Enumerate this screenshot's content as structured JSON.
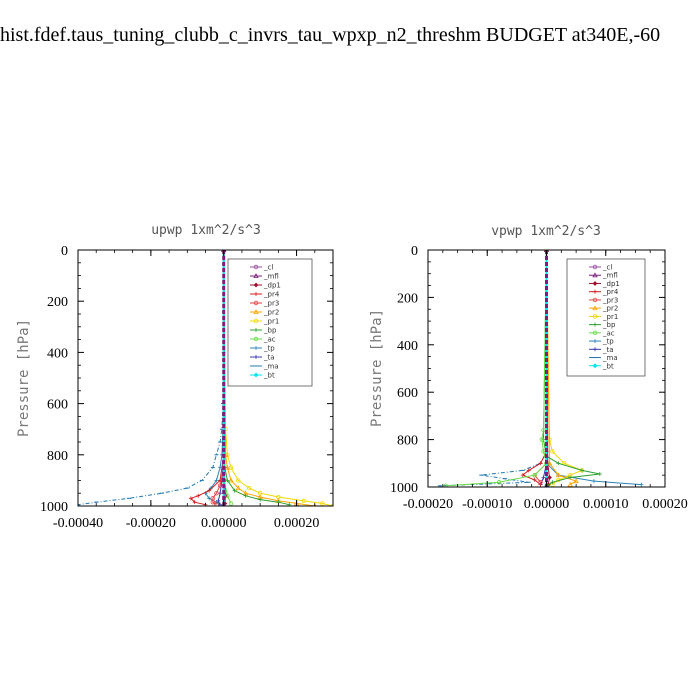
{
  "figure_title": "hist.fdef.taus_tuning_clubb_c_invrs_tau_wpxp_n2_threshm  BUDGET at340E,-60",
  "colors": {
    "_cl": "#984ea3",
    "_mfl": "#7b1f7b",
    "_dp1": "#a50f2d",
    "_pr4": "#d7191c",
    "_pr3": "#e8413f",
    "_pr2": "#ffa500",
    "_pr1": "#f0d800",
    "_bp": "#2ca02c",
    "_ac": "#66dd44",
    "_tp": "#2b83ba",
    "_ta": "#3a3ab0",
    "_ma": "#1f78b4",
    "_bt": "#00e5ee"
  },
  "chart_data": [
    {
      "type": "line",
      "title": "upwp   1xm^2/s^3",
      "xlabel": "",
      "ylabel": "Pressure [hPa]",
      "xlim": [
        -0.0004,
        0.0003
      ],
      "ylim": [
        1000,
        0
      ],
      "xticks": [
        "-0.00040",
        "-0.00020",
        "0.00000",
        "0.00020"
      ],
      "xtick_values": [
        -0.0004,
        -0.0002,
        0.0,
        0.0002
      ],
      "yticks": [
        "0",
        "200",
        "400",
        "600",
        "800",
        "1000"
      ],
      "ytick_values": [
        0,
        200,
        400,
        600,
        800,
        1000
      ],
      "legend_position": "top-right",
      "legend": [
        "_cl",
        "_mfl",
        "_dp1",
        "_pr4",
        "_pr3",
        "_pr2",
        "_pr1",
        "_bp",
        "_ac",
        "_tp",
        "_ta",
        "_ma",
        "_bt"
      ],
      "series": [
        {
          "name": "_ma",
          "y": [
            0,
            400,
            600,
            700,
            750,
            800,
            850,
            900,
            930,
            950,
            970,
            985,
            995
          ],
          "values": [
            0,
            0,
            -2e-06,
            -5e-06,
            -1e-05,
            -2e-05,
            -3e-05,
            -6e-05,
            -0.0001,
            -0.00017,
            -0.00026,
            -0.00035,
            -0.0004
          ]
        },
        {
          "name": "_tp",
          "y": [
            0,
            600,
            700,
            800,
            850,
            900,
            930,
            950,
            970,
            985,
            995
          ],
          "values": [
            0,
            0,
            -2e-06,
            -5e-06,
            -1e-05,
            -2e-05,
            -3.5e-05,
            -5e-05,
            -4e-05,
            -2e-05,
            -1e-05
          ]
        },
        {
          "name": "_ta",
          "y": [
            0,
            800,
            900,
            950,
            980,
            995
          ],
          "values": [
            0,
            0,
            -5e-06,
            -1e-05,
            -1.5e-05,
            -1e-05
          ]
        },
        {
          "name": "_pr4",
          "y": [
            0,
            800,
            900,
            940,
            960,
            970,
            985,
            995
          ],
          "values": [
            0,
            0,
            -1e-05,
            -4e-05,
            -7e-05,
            -9e-05,
            -8e-05,
            -5e-05
          ]
        },
        {
          "name": "_pr3",
          "y": [
            0,
            850,
            920,
            950,
            970,
            985,
            995
          ],
          "values": [
            0,
            0,
            -1e-05,
            -2e-05,
            -3e-05,
            -3e-05,
            -2e-05
          ]
        },
        {
          "name": "_dp1",
          "y": [
            0,
            900,
            960,
            990
          ],
          "values": [
            0,
            2e-06,
            5e-06,
            3e-06
          ]
        },
        {
          "name": "_pr1",
          "y": [
            0,
            700,
            800,
            850,
            900,
            930,
            950,
            965,
            980,
            990,
            1000
          ],
          "values": [
            0,
            5e-06,
            1e-05,
            2e-05,
            4e-05,
            7e-05,
            0.0001,
            0.00015,
            0.00022,
            0.00027,
            0.0003
          ]
        },
        {
          "name": "_pr2",
          "y": [
            0,
            800,
            850,
            900,
            930,
            950,
            965,
            980,
            990,
            1000
          ],
          "values": [
            0,
            5e-06,
            1e-05,
            2e-05,
            4e-05,
            6e-05,
            0.0001,
            0.00015,
            0.0002,
            0.00025
          ]
        },
        {
          "name": "_bp",
          "y": [
            0,
            850,
            900,
            940,
            960,
            975,
            985,
            995
          ],
          "values": [
            0,
            3e-06,
            1e-05,
            3e-05,
            6e-05,
            0.0001,
            0.00015,
            0.00018
          ]
        },
        {
          "name": "_ac",
          "y": [
            0,
            900,
            960,
            990
          ],
          "values": [
            0,
            2e-06,
            1e-05,
            2e-05
          ]
        },
        {
          "name": "_cl",
          "y": [
            0,
            1000
          ],
          "values": [
            0,
            0
          ]
        },
        {
          "name": "_bt",
          "y": [
            0,
            1000
          ],
          "values": [
            0,
            0
          ]
        },
        {
          "name": "_mfl",
          "y": [
            0,
            1000
          ],
          "values": [
            0,
            0
          ]
        }
      ]
    },
    {
      "type": "line",
      "title": "vpwp   1xm^2/s^3",
      "xlabel": "",
      "ylabel": "Pressure [hPa]",
      "xlim": [
        -0.0002,
        0.0002
      ],
      "ylim": [
        1000,
        0
      ],
      "xticks": [
        "-0.00020",
        "-0.00010",
        "0.00000",
        "0.00010",
        "0.00020"
      ],
      "xtick_values": [
        -0.0002,
        -0.0001,
        0.0,
        0.0001,
        0.0002
      ],
      "yticks": [
        "0",
        "200",
        "400",
        "600",
        "800",
        "1000"
      ],
      "ytick_values": [
        0,
        200,
        400,
        600,
        800,
        1000
      ],
      "legend_position": "top-right",
      "legend": [
        "_cl",
        "_mfl",
        "_dp1",
        "_pr4",
        "_pr3",
        "_pr2",
        "_pr1",
        "_bp",
        "_ac",
        "_tp",
        "_ta",
        "_ma",
        "_bt"
      ],
      "series": [
        {
          "name": "_ma",
          "y": [
            0,
            850,
            900,
            930,
            950,
            965,
            980,
            995
          ],
          "values": [
            0,
            0,
            -1e-05,
            -4e-05,
            -0.00011,
            -7e-05,
            -3e-05,
            -0.00018
          ]
        },
        {
          "name": "_tp",
          "y": [
            0,
            900,
            950,
            975,
            990
          ],
          "values": [
            0,
            0,
            2e-05,
            8e-05,
            0.00016
          ]
        },
        {
          "name": "_ta",
          "y": [
            0,
            900,
            960,
            990
          ],
          "values": [
            0,
            0,
            -5e-06,
            -1e-05
          ]
        },
        {
          "name": "_pr4",
          "y": [
            0,
            850,
            900,
            930,
            950,
            970,
            990
          ],
          "values": [
            0,
            0,
            -1e-05,
            -3e-05,
            -4e-05,
            -2e-05,
            -1e-05
          ]
        },
        {
          "name": "_pr3",
          "y": [
            0,
            900,
            950,
            980
          ],
          "values": [
            0,
            0,
            -2e-05,
            -1e-05
          ]
        },
        {
          "name": "_dp1",
          "y": [
            0,
            900,
            960,
            990
          ],
          "values": [
            0,
            2e-06,
            5e-06,
            3e-06
          ]
        },
        {
          "name": "_pr1",
          "y": [
            0,
            800,
            850,
            900,
            930,
            950,
            970,
            990
          ],
          "values": [
            0,
            5e-06,
            1e-05,
            3e-05,
            6e-05,
            4e-05,
            2e-05,
            1e-05
          ]
        },
        {
          "name": "_pr2",
          "y": [
            0,
            900,
            950,
            975,
            990
          ],
          "values": [
            0,
            5e-06,
            2e-05,
            5e-05,
            4e-05
          ]
        },
        {
          "name": "_bp",
          "y": [
            0,
            800,
            870,
            900,
            930,
            945,
            960,
            980,
            995
          ],
          "values": [
            0,
            -5e-06,
            0,
            2e-05,
            6e-05,
            9e-05,
            4e-05,
            1e-05,
            0
          ]
        },
        {
          "name": "_ac",
          "y": [
            0,
            760,
            800,
            850,
            900,
            950,
            980,
            995
          ],
          "values": [
            0,
            -5e-06,
            -8e-06,
            -5e-06,
            0,
            -2e-05,
            -8e-05,
            -0.00017
          ]
        },
        {
          "name": "_cl",
          "y": [
            0,
            1000
          ],
          "values": [
            0,
            0
          ]
        },
        {
          "name": "_bt",
          "y": [
            0,
            1000
          ],
          "values": [
            0,
            0
          ]
        },
        {
          "name": "_mfl",
          "y": [
            0,
            1000
          ],
          "values": [
            0,
            0
          ]
        }
      ]
    }
  ]
}
